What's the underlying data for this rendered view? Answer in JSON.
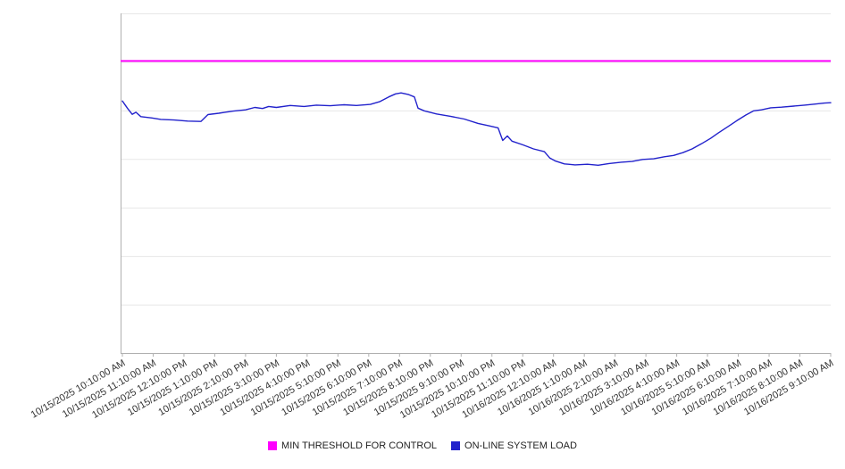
{
  "chart_data": {
    "type": "line",
    "title": "",
    "xlabel": "",
    "ylabel": "",
    "ylim": [
      0,
      100
    ],
    "grid": true,
    "legend_position": "bottom",
    "x_tick_rotation": -30,
    "categories": [
      "10/15/2025 10:10:00 AM",
      "10/15/2025 11:10:00 AM",
      "10/15/2025 12:10:00 PM",
      "10/15/2025 1:10:00 PM",
      "10/15/2025 2:10:00 PM",
      "10/15/2025 3:10:00 PM",
      "10/15/2025 4:10:00 PM",
      "10/15/2025 5:10:00 PM",
      "10/15/2025 6:10:00 PM",
      "10/15/2025 7:10:00 PM",
      "10/15/2025 8:10:00 PM",
      "10/15/2025 9:10:00 PM",
      "10/15/2025 10:10:00 PM",
      "10/15/2025 11:10:00 PM",
      "10/16/2025 12:10:00 AM",
      "10/16/2025 1:10:00 AM",
      "10/16/2025 2:10:00 AM",
      "10/16/2025 3:10:00 AM",
      "10/16/2025 4:10:00 AM",
      "10/16/2025 5:10:00 AM",
      "10/16/2025 6:10:00 AM",
      "10/16/2025 7:10:00 AM",
      "10/16/2025 8:10:00 AM",
      "10/16/2025 9:10:00 AM"
    ],
    "series": [
      {
        "name": "MIN THRESHOLD FOR CONTROL",
        "color": "#ff00ff",
        "constant": 86
      },
      {
        "name": "ON-LINE SYSTEM LOAD",
        "color": "#2222cc",
        "points": [
          [
            0,
            74.2
          ],
          [
            0.17,
            72.0
          ],
          [
            0.32,
            70.3
          ],
          [
            0.44,
            70.9
          ],
          [
            0.6,
            69.6
          ],
          [
            0.96,
            69.2
          ],
          [
            1.25,
            68.8
          ],
          [
            1.68,
            68.6
          ],
          [
            2.12,
            68.3
          ],
          [
            2.55,
            68.2
          ],
          [
            2.78,
            70.2
          ],
          [
            3.13,
            70.6
          ],
          [
            3.57,
            71.2
          ],
          [
            4.0,
            71.6
          ],
          [
            4.3,
            72.3
          ],
          [
            4.55,
            72.0
          ],
          [
            4.75,
            72.6
          ],
          [
            5.0,
            72.3
          ],
          [
            5.45,
            72.9
          ],
          [
            5.9,
            72.6
          ],
          [
            6.3,
            73.0
          ],
          [
            6.75,
            72.8
          ],
          [
            7.2,
            73.1
          ],
          [
            7.6,
            72.9
          ],
          [
            8.05,
            73.2
          ],
          [
            8.35,
            74.0
          ],
          [
            8.65,
            75.4
          ],
          [
            8.87,
            76.3
          ],
          [
            9.05,
            76.6
          ],
          [
            9.3,
            76.1
          ],
          [
            9.48,
            75.4
          ],
          [
            9.6,
            72.1
          ],
          [
            9.8,
            71.3
          ],
          [
            10.2,
            70.4
          ],
          [
            10.65,
            69.7
          ],
          [
            11.1,
            68.9
          ],
          [
            11.55,
            67.6
          ],
          [
            11.9,
            66.9
          ],
          [
            12.2,
            66.3
          ],
          [
            12.35,
            62.6
          ],
          [
            12.5,
            63.9
          ],
          [
            12.65,
            62.4
          ],
          [
            13.0,
            61.3
          ],
          [
            13.35,
            60.1
          ],
          [
            13.7,
            59.3
          ],
          [
            13.88,
            57.4
          ],
          [
            14.05,
            56.6
          ],
          [
            14.35,
            55.7
          ],
          [
            14.7,
            55.4
          ],
          [
            15.1,
            55.6
          ],
          [
            15.45,
            55.3
          ],
          [
            15.8,
            55.8
          ],
          [
            16.2,
            56.2
          ],
          [
            16.55,
            56.4
          ],
          [
            16.9,
            57.0
          ],
          [
            17.25,
            57.2
          ],
          [
            17.6,
            57.8
          ],
          [
            17.9,
            58.2
          ],
          [
            18.2,
            59.0
          ],
          [
            18.5,
            60.1
          ],
          [
            18.8,
            61.6
          ],
          [
            19.1,
            63.2
          ],
          [
            19.35,
            64.8
          ],
          [
            19.65,
            66.6
          ],
          [
            19.95,
            68.4
          ],
          [
            20.25,
            70.1
          ],
          [
            20.5,
            71.3
          ],
          [
            20.75,
            71.6
          ],
          [
            21.05,
            72.2
          ],
          [
            21.4,
            72.4
          ],
          [
            21.8,
            72.7
          ],
          [
            22.15,
            73.0
          ],
          [
            22.5,
            73.3
          ],
          [
            22.8,
            73.6
          ],
          [
            23,
            73.7
          ]
        ]
      }
    ]
  },
  "legend": {
    "items": [
      {
        "label": "MIN THRESHOLD FOR CONTROL",
        "color": "#ff00ff"
      },
      {
        "label": "ON-LINE SYSTEM LOAD",
        "color": "#2222cc"
      }
    ]
  }
}
